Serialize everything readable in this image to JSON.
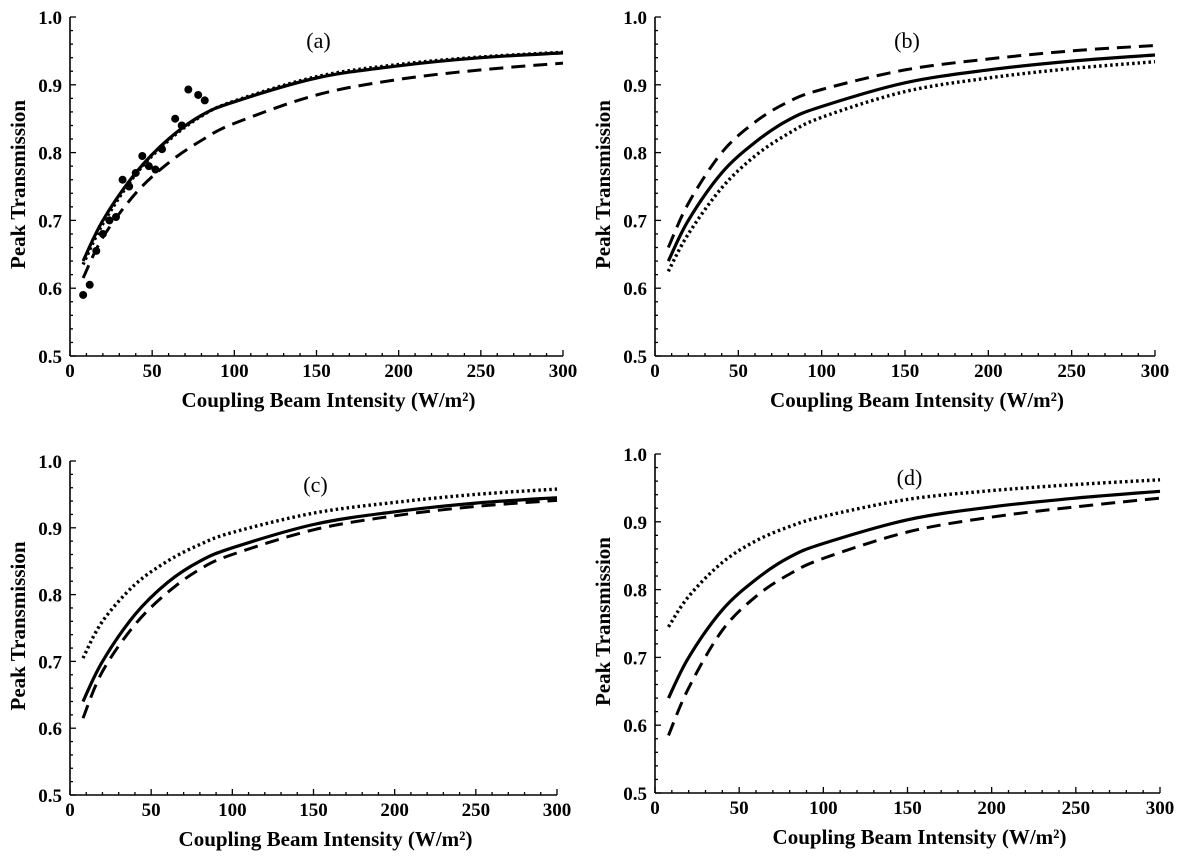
{
  "chart_data": [
    {
      "type": "line",
      "panel_label": "(a)",
      "xlabel": "Coupling Beam Intensity (W/m²)",
      "ylabel": "Peak Transmission",
      "xlim": [
        0,
        300
      ],
      "ylim": [
        0.5,
        1.0
      ],
      "xticks": [
        "0",
        "50",
        "100",
        "150",
        "200",
        "250",
        "300"
      ],
      "yticks": [
        "0.5",
        "0.6",
        "0.7",
        "0.8",
        "0.9",
        "1.0"
      ],
      "grid": false,
      "legend": "none",
      "series": [
        {
          "style": "solid",
          "x": [
            8,
            20,
            40,
            60,
            80,
            100,
            150,
            200,
            250,
            300
          ],
          "y": [
            0.64,
            0.7,
            0.77,
            0.82,
            0.855,
            0.875,
            0.91,
            0.928,
            0.94,
            0.947
          ]
        },
        {
          "style": "dotted",
          "x": [
            8,
            20,
            40,
            60,
            80,
            100,
            150,
            200,
            250,
            300
          ],
          "y": [
            0.635,
            0.695,
            0.768,
            0.818,
            0.854,
            0.876,
            0.912,
            0.93,
            0.941,
            0.948
          ]
        },
        {
          "style": "dashed",
          "x": [
            8,
            20,
            40,
            60,
            80,
            100,
            150,
            200,
            250,
            300
          ],
          "y": [
            0.615,
            0.675,
            0.74,
            0.785,
            0.818,
            0.843,
            0.885,
            0.908,
            0.922,
            0.932
          ]
        },
        {
          "style": "points",
          "x": [
            8,
            12,
            16,
            20,
            24,
            28,
            32,
            36,
            40,
            44,
            48,
            52,
            56,
            64,
            68,
            72,
            78,
            82
          ],
          "y": [
            0.59,
            0.605,
            0.655,
            0.68,
            0.7,
            0.705,
            0.76,
            0.75,
            0.77,
            0.795,
            0.78,
            0.775,
            0.805,
            0.85,
            0.84,
            0.893,
            0.885,
            0.877
          ]
        }
      ]
    },
    {
      "type": "line",
      "panel_label": "(b)",
      "xlabel": "Coupling Beam Intensity (W/m²)",
      "ylabel": "Peak Transmission",
      "xlim": [
        0,
        300
      ],
      "ylim": [
        0.5,
        1.0
      ],
      "xticks": [
        "0",
        "50",
        "100",
        "150",
        "200",
        "250",
        "300"
      ],
      "yticks": [
        "0.5",
        "0.6",
        "0.7",
        "0.8",
        "0.9",
        "1.0"
      ],
      "grid": false,
      "legend": "none",
      "series": [
        {
          "style": "solid",
          "x": [
            8,
            20,
            40,
            60,
            80,
            100,
            150,
            200,
            250,
            300
          ],
          "y": [
            0.64,
            0.7,
            0.77,
            0.815,
            0.848,
            0.868,
            0.903,
            0.922,
            0.935,
            0.944
          ]
        },
        {
          "style": "dotted",
          "x": [
            8,
            20,
            40,
            60,
            80,
            100,
            150,
            200,
            250,
            300
          ],
          "y": [
            0.625,
            0.68,
            0.748,
            0.795,
            0.828,
            0.852,
            0.89,
            0.91,
            0.924,
            0.934
          ]
        },
        {
          "style": "dashed",
          "x": [
            8,
            20,
            40,
            60,
            80,
            100,
            150,
            200,
            250,
            300
          ],
          "y": [
            0.66,
            0.725,
            0.8,
            0.845,
            0.875,
            0.893,
            0.922,
            0.938,
            0.95,
            0.958
          ]
        }
      ]
    },
    {
      "type": "line",
      "panel_label": "(c)",
      "xlabel": "Coupling Beam Intensity (W/m²)",
      "ylabel": "Peak Transmission",
      "xlim": [
        0,
        300
      ],
      "ylim": [
        0.5,
        1.0
      ],
      "xticks": [
        "0",
        "50",
        "100",
        "150",
        "200",
        "250",
        "300"
      ],
      "yticks": [
        "0.5",
        "0.6",
        "0.7",
        "0.8",
        "0.9",
        "1.0"
      ],
      "grid": false,
      "legend": "none",
      "series": [
        {
          "style": "solid",
          "x": [
            8,
            20,
            40,
            60,
            80,
            100,
            150,
            200,
            250,
            300
          ],
          "y": [
            0.64,
            0.7,
            0.77,
            0.818,
            0.85,
            0.87,
            0.905,
            0.924,
            0.937,
            0.945
          ]
        },
        {
          "style": "dotted",
          "x": [
            8,
            20,
            40,
            60,
            80,
            100,
            150,
            200,
            250,
            300
          ],
          "y": [
            0.705,
            0.76,
            0.815,
            0.85,
            0.875,
            0.893,
            0.922,
            0.938,
            0.95,
            0.958
          ]
        },
        {
          "style": "dashed",
          "x": [
            8,
            20,
            40,
            60,
            80,
            100,
            150,
            200,
            250,
            300
          ],
          "y": [
            0.615,
            0.685,
            0.755,
            0.803,
            0.838,
            0.86,
            0.897,
            0.918,
            0.932,
            0.941
          ]
        }
      ]
    },
    {
      "type": "line",
      "panel_label": "(d)",
      "xlabel": "Coupling Beam Intensity (W/m²)",
      "ylabel": "Peak Transmission",
      "xlim": [
        0,
        300
      ],
      "ylim": [
        0.5,
        1.0
      ],
      "xticks": [
        "0",
        "50",
        "100",
        "150",
        "200",
        "250",
        "300"
      ],
      "yticks": [
        "0.5",
        "0.6",
        "0.7",
        "0.8",
        "0.9",
        "1.0"
      ],
      "grid": false,
      "legend": "none",
      "series": [
        {
          "style": "solid",
          "x": [
            8,
            20,
            40,
            60,
            80,
            100,
            150,
            200,
            250,
            300
          ],
          "y": [
            0.64,
            0.7,
            0.77,
            0.815,
            0.848,
            0.868,
            0.903,
            0.922,
            0.935,
            0.945
          ]
        },
        {
          "style": "dotted",
          "x": [
            8,
            20,
            40,
            60,
            80,
            100,
            150,
            200,
            250,
            300
          ],
          "y": [
            0.745,
            0.79,
            0.84,
            0.872,
            0.893,
            0.908,
            0.933,
            0.946,
            0.955,
            0.962
          ]
        },
        {
          "style": "dashed",
          "x": [
            8,
            20,
            40,
            60,
            80,
            100,
            150,
            200,
            250,
            300
          ],
          "y": [
            0.585,
            0.655,
            0.74,
            0.79,
            0.823,
            0.846,
            0.885,
            0.907,
            0.922,
            0.935
          ]
        }
      ]
    }
  ]
}
